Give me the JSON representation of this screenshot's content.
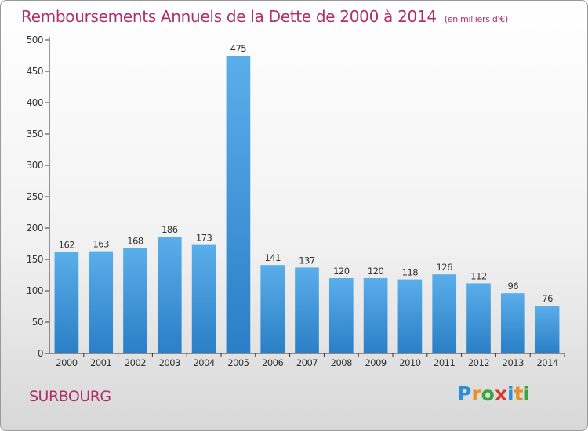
{
  "title": "Remboursements Annuels de la Dette de 2000 à 2014",
  "subtitle": "(en milliers d'€)",
  "town": "SURBOURG",
  "brand": {
    "letters": [
      "P",
      "r",
      "o",
      "x",
      "i",
      "t",
      "i"
    ],
    "colors": [
      "#2c8fd6",
      "#e8902a",
      "#3aa53a",
      "#d8342a",
      "#2c8fd6",
      "#e8902a",
      "#3aa53a"
    ]
  },
  "colors": {
    "title": "#b0306a",
    "bar_top": "#5aaeea",
    "bar_bottom": "#2a7fc6",
    "axis": "#333333"
  },
  "chart_data": {
    "type": "bar",
    "categories": [
      "2000",
      "2001",
      "2002",
      "2003",
      "2004",
      "2005",
      "2006",
      "2007",
      "2008",
      "2009",
      "2010",
      "2011",
      "2012",
      "2013",
      "2014"
    ],
    "values": [
      162,
      163,
      168,
      186,
      173,
      475,
      141,
      137,
      120,
      120,
      118,
      126,
      112,
      96,
      76
    ],
    "ylim": [
      0,
      500
    ],
    "yticks": [
      0,
      50,
      100,
      150,
      200,
      250,
      300,
      350,
      400,
      450,
      500
    ],
    "grid": false,
    "data_labels": true
  }
}
